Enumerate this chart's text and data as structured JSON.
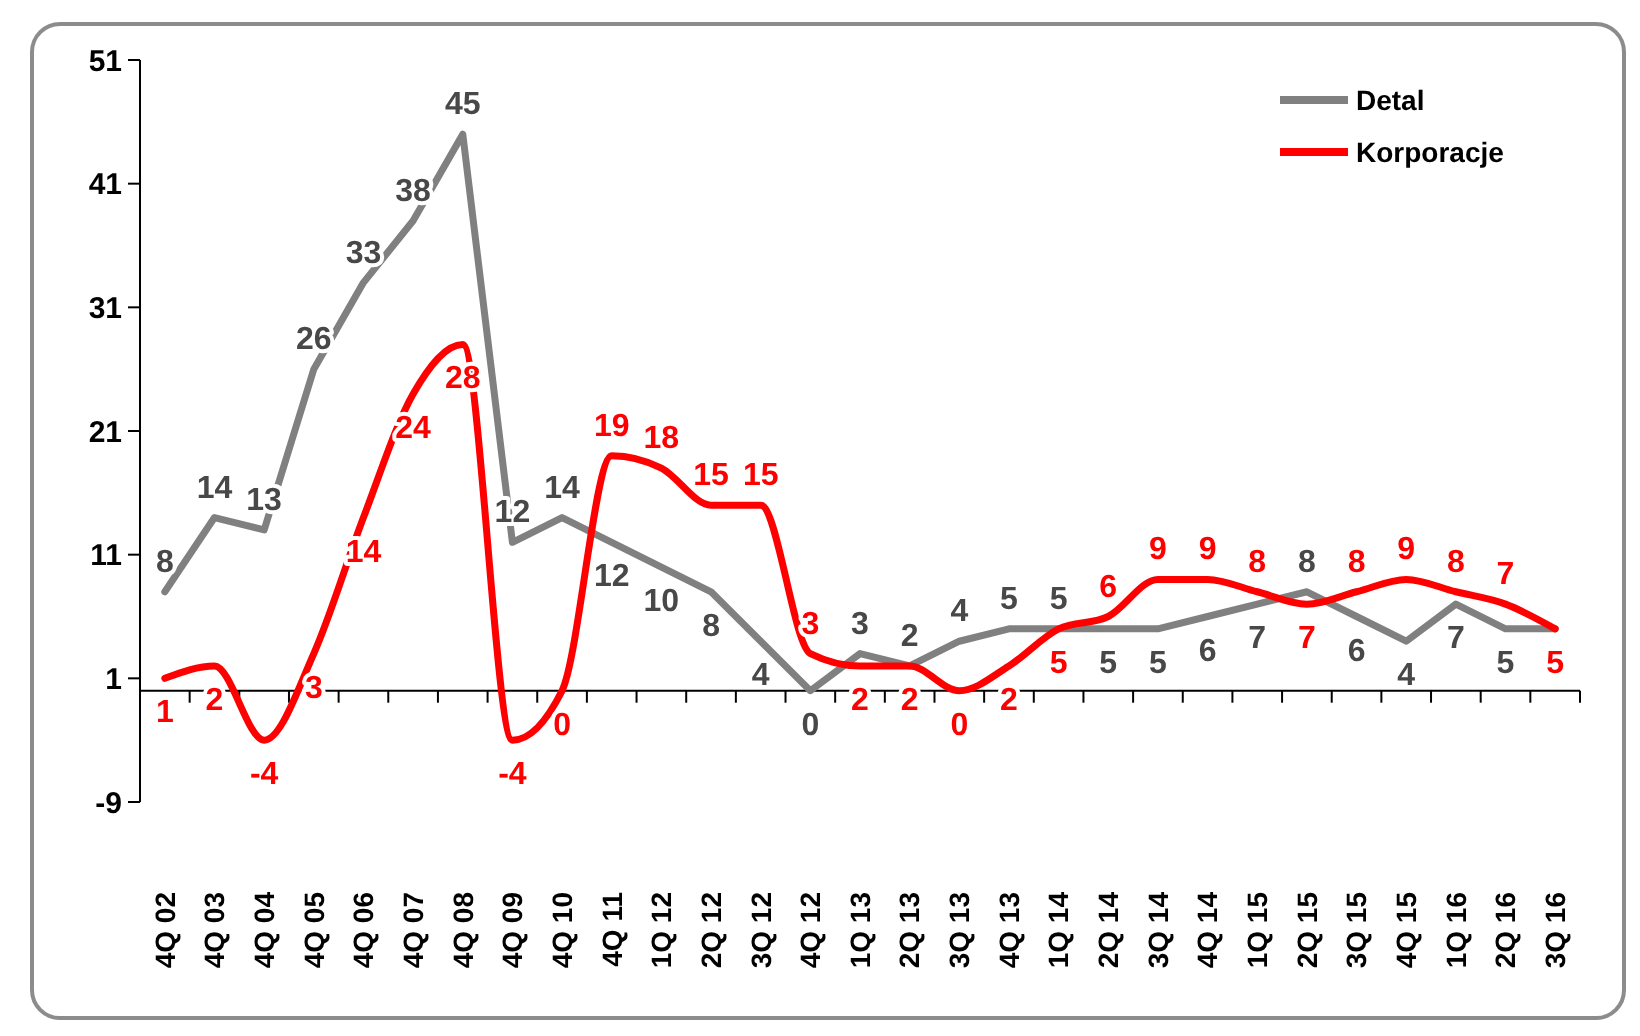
{
  "chart_data": {
    "type": "line",
    "categories": [
      "4Q 02",
      "4Q 03",
      "4Q 04",
      "4Q 05",
      "4Q 06",
      "4Q 07",
      "4Q 08",
      "4Q 09",
      "4Q 10",
      "4Q 11",
      "1Q 12",
      "2Q 12",
      "3Q 12",
      "4Q 12",
      "1Q 13",
      "2Q 13",
      "3Q 13",
      "4Q 13",
      "1Q 14",
      "2Q 14",
      "3Q 14",
      "4Q 14",
      "1Q 15",
      "2Q 15",
      "3Q 15",
      "4Q 15",
      "1Q 16",
      "2Q 16",
      "3Q 16"
    ],
    "series": [
      {
        "name": "Detal",
        "color": "#808080",
        "values": [
          8,
          14,
          13,
          26,
          33,
          38,
          45,
          12,
          14,
          12,
          10,
          8,
          4,
          0,
          3,
          2,
          4,
          5,
          5,
          5,
          5,
          6,
          7,
          8,
          6,
          4,
          7,
          5,
          5
        ],
        "value_labels": [
          "8",
          "14",
          "13",
          "26",
          "33",
          "38",
          "45",
          "12",
          "14",
          "12",
          "10",
          "8",
          "4",
          "0",
          "3",
          "2",
          "4",
          "5",
          "5",
          "5",
          "5",
          "6",
          "7",
          "8",
          "6",
          "4",
          "7",
          "5",
          null
        ]
      },
      {
        "name": "Korporacje",
        "color": "#ff0000",
        "values": [
          1,
          2,
          -4,
          3,
          14,
          24,
          28,
          -4,
          0,
          19,
          18,
          15,
          15,
          3,
          2,
          2,
          0,
          2,
          5,
          6,
          9,
          9,
          8,
          7,
          8,
          9,
          8,
          7,
          5
        ],
        "value_labels": [
          "1",
          "2",
          "-4",
          "3",
          "14",
          "24",
          "28",
          "-4",
          "0",
          "19",
          "18",
          "15",
          "15",
          "3",
          "2",
          "2",
          "0",
          "2",
          "5",
          "6",
          "9",
          "9",
          "8",
          "7",
          "8",
          "9",
          "8",
          "7",
          "5"
        ]
      }
    ],
    "ylim": [
      -9,
      51
    ],
    "yticks": [
      -9,
      1,
      11,
      21,
      31,
      41,
      51
    ],
    "grid": false,
    "legend": "top right",
    "line_style": "solid",
    "marker": "none"
  }
}
